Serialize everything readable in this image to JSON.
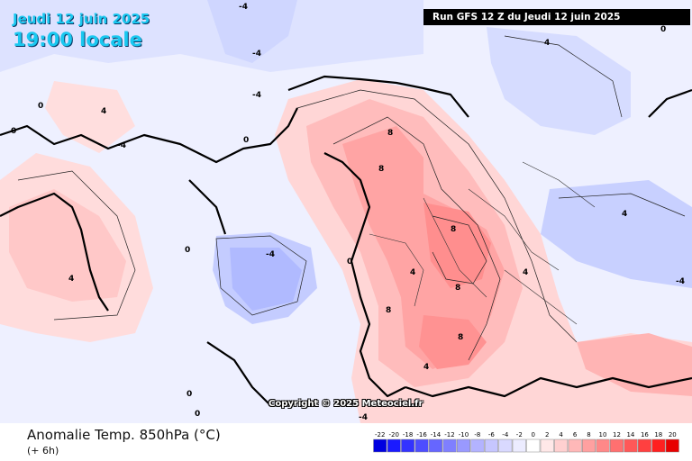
{
  "header": {
    "date": "Jeudi 12 juin 2025",
    "time": "19:00 locale",
    "run": "Run GFS 12 Z du Jeudi 12 juin 2025"
  },
  "copyright": "Copyright © 2025 Meteociel.fr",
  "footer": {
    "title": "Anomalie Temp. 850hPa (°C)",
    "subtitle": "(+ 6h)"
  },
  "legend": {
    "labels": [
      "-22",
      "-20",
      "-18",
      "-16",
      "-14",
      "-12",
      "-10",
      "-8",
      "-6",
      "-4",
      "-2",
      "0",
      "2",
      "4",
      "6",
      "8",
      "10",
      "12",
      "14",
      "16",
      "18",
      "20"
    ],
    "colors": [
      "#0000e0",
      "#1a1aff",
      "#3333ff",
      "#4d4dff",
      "#6666ff",
      "#7f7fff",
      "#9999ff",
      "#b3b3ff",
      "#c6c6ff",
      "#d9d9ff",
      "#ececff",
      "#ffffff",
      "#ffe8e8",
      "#ffd0d0",
      "#ffb8b8",
      "#ffa0a0",
      "#ff8888",
      "#ff7070",
      "#ff5858",
      "#ff4040",
      "#ff2020",
      "#e80000"
    ]
  },
  "isoline_labels": [
    {
      "t": "-4"
    },
    {
      "t": "-4"
    },
    {
      "t": "-4"
    },
    {
      "t": "0"
    },
    {
      "t": "0"
    },
    {
      "t": "4"
    },
    {
      "t": "0"
    },
    {
      "t": "-4"
    },
    {
      "t": "8"
    },
    {
      "t": "8"
    },
    {
      "t": "8"
    },
    {
      "t": "8"
    },
    {
      "t": "8"
    },
    {
      "t": "4"
    },
    {
      "t": "4"
    },
    {
      "t": "4"
    },
    {
      "t": "0"
    },
    {
      "t": "0"
    },
    {
      "t": "-4"
    },
    {
      "t": "-4"
    },
    {
      "t": "4"
    },
    {
      "t": "0"
    },
    {
      "t": "4"
    },
    {
      "t": "8"
    },
    {
      "t": "4"
    },
    {
      "t": "0"
    },
    {
      "t": "0"
    },
    {
      "t": "-4"
    }
  ]
}
